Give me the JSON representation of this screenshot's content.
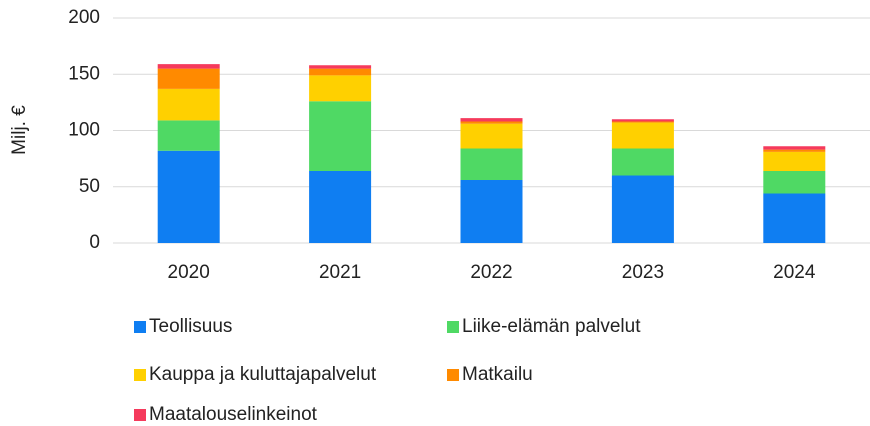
{
  "chart_data": {
    "type": "stacked_bar",
    "y_label": "Milj. €",
    "categories": [
      "2020",
      "2021",
      "2022",
      "2023",
      "2024"
    ],
    "series": [
      {
        "name": "Teollisuus",
        "color": "#0f7ef2",
        "values": [
          82,
          64,
          56,
          60,
          44
        ]
      },
      {
        "name": "Liike-elämän palvelut",
        "color": "#4fd964",
        "values": [
          27,
          62,
          28,
          24,
          20
        ]
      },
      {
        "name": "Kauppa ja kuluttajapalvelut",
        "color": "#ffd000",
        "values": [
          28,
          23,
          22,
          23,
          17
        ]
      },
      {
        "name": "Matkailu",
        "color": "#ff8a00",
        "values": [
          18,
          6,
          2,
          1,
          2
        ]
      },
      {
        "name": "Maatalouselinkeinot",
        "color": "#f53a5c",
        "values": [
          4,
          3,
          3,
          2,
          3
        ]
      }
    ],
    "ylim": [
      0,
      200
    ],
    "yticks": [
      0,
      50,
      100,
      150,
      200
    ],
    "grid": true
  }
}
